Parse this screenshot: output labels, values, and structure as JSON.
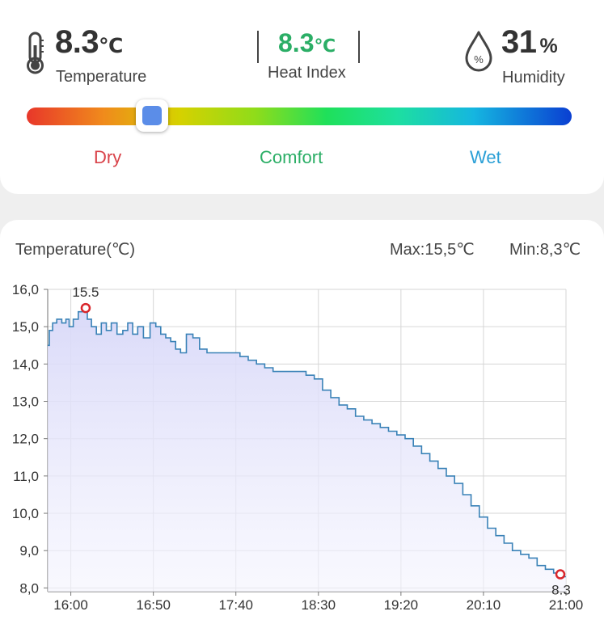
{
  "top": {
    "temperature": {
      "value": "8.3",
      "unit": "℃",
      "label": "Temperature"
    },
    "heat_index": {
      "value": "8.3",
      "unit": "℃",
      "label": "Heat Index"
    },
    "humidity": {
      "value": "31",
      "unit": "%",
      "label": "Humidity",
      "icon_text": "%"
    },
    "gauge": {
      "labels": {
        "dry": "Dry",
        "comfort": "Comfort",
        "wet": "Wet"
      },
      "position": 0.23
    },
    "colors": {
      "dry": "#d9434a",
      "comfort": "#2bae66",
      "wet": "#2a9fd6"
    }
  },
  "chart_header": {
    "title": "Temperature(℃)",
    "max": "Max:15,5℃",
    "min": "Min:8,3℃"
  },
  "chart_data": {
    "type": "area",
    "x_ticks": [
      "16:00",
      "16:50",
      "17:40",
      "18:30",
      "19:20",
      "20:10",
      "21:00"
    ],
    "y_ticks": [
      "16,0",
      "15,0",
      "14,0",
      "13,0",
      "12,0",
      "11,0",
      "10,0",
      "9,0",
      "8,0"
    ],
    "ylim": [
      7.9,
      16.0
    ],
    "xlim": [
      "15:46",
      "21:00"
    ],
    "series": [
      {
        "line_color": "#3a82b7",
        "fill_color": "#dcdcfa",
        "x": [
          "15:46",
          "15:48",
          "15:50",
          "15:53",
          "15:56",
          "15:58",
          "16:00",
          "16:03",
          "16:06",
          "16:09",
          "16:11",
          "16:14",
          "16:17",
          "16:20",
          "16:23",
          "16:26",
          "16:30",
          "16:33",
          "16:36",
          "16:39",
          "16:42",
          "16:46",
          "16:50",
          "16:53",
          "16:56",
          "16:59",
          "17:02",
          "17:05",
          "17:08",
          "17:12",
          "17:16",
          "17:20",
          "17:25",
          "17:30",
          "17:35",
          "17:40",
          "17:45",
          "17:50",
          "17:55",
          "18:00",
          "18:05",
          "18:10",
          "18:15",
          "18:20",
          "18:25",
          "18:30",
          "18:35",
          "18:40",
          "18:45",
          "18:50",
          "18:55",
          "19:00",
          "19:05",
          "19:10",
          "19:15",
          "19:20",
          "19:25",
          "19:30",
          "19:35",
          "19:40",
          "19:45",
          "19:50",
          "19:55",
          "20:00",
          "20:05",
          "20:10",
          "20:15",
          "20:20",
          "20:25",
          "20:30",
          "20:35",
          "20:40",
          "20:45",
          "20:50",
          "20:55",
          "20:58",
          "21:00"
        ],
        "values": [
          14.5,
          14.9,
          15.1,
          15.2,
          15.1,
          15.2,
          15.0,
          15.2,
          15.4,
          15.5,
          15.2,
          15.0,
          14.8,
          15.1,
          14.9,
          15.1,
          14.8,
          14.9,
          15.1,
          14.8,
          15.0,
          14.7,
          15.1,
          15.0,
          14.8,
          14.7,
          14.6,
          14.4,
          14.3,
          14.8,
          14.7,
          14.4,
          14.3,
          14.3,
          14.3,
          14.3,
          14.2,
          14.1,
          14.0,
          13.9,
          13.8,
          13.8,
          13.8,
          13.8,
          13.7,
          13.6,
          13.3,
          13.1,
          12.9,
          12.8,
          12.6,
          12.5,
          12.4,
          12.3,
          12.2,
          12.1,
          12.0,
          11.8,
          11.6,
          11.4,
          11.2,
          11.0,
          10.8,
          10.5,
          10.2,
          9.9,
          9.6,
          9.4,
          9.2,
          9.0,
          8.9,
          8.8,
          8.6,
          8.5,
          8.4,
          8.35,
          8.3
        ],
        "max_label": "15.5",
        "min_label": "8.3"
      }
    ]
  }
}
